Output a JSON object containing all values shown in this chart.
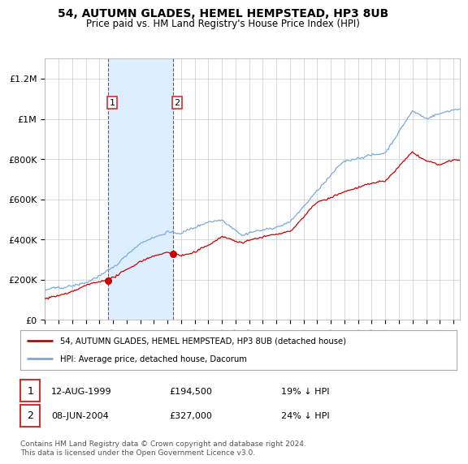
{
  "title": "54, AUTUMN GLADES, HEMEL HEMPSTEAD, HP3 8UB",
  "subtitle": "Price paid vs. HM Land Registry's House Price Index (HPI)",
  "ylabel_ticks": [
    "£0",
    "£200K",
    "£400K",
    "£600K",
    "£800K",
    "£1M",
    "£1.2M"
  ],
  "ytick_values": [
    0,
    200000,
    400000,
    600000,
    800000,
    1000000,
    1200000
  ],
  "ylim": [
    0,
    1300000
  ],
  "xlim_start": 1995.0,
  "xlim_end": 2025.5,
  "sale1_date": 1999.616,
  "sale1_price": 194500,
  "sale2_date": 2004.44,
  "sale2_price": 327000,
  "highlight_x1": 1999.62,
  "highlight_x2": 2004.44,
  "red_line_color": "#cc0000",
  "blue_line_color": "#7aaadd",
  "highlight_color": "#ddeeff",
  "highlight_border": "#cc3333",
  "legend_label_red": "54, AUTUMN GLADES, HEMEL HEMPSTEAD, HP3 8UB (detached house)",
  "legend_label_blue": "HPI: Average price, detached house, Dacorum",
  "table_row1": [
    "1",
    "12-AUG-1999",
    "£194,500",
    "19% ↓ HPI"
  ],
  "table_row2": [
    "2",
    "08-JUN-2004",
    "£327,000",
    "24% ↓ HPI"
  ],
  "footnote": "Contains HM Land Registry data © Crown copyright and database right 2024.\nThis data is licensed under the Open Government Licence v3.0.",
  "background_color": "#ffffff",
  "grid_color": "#cccccc"
}
